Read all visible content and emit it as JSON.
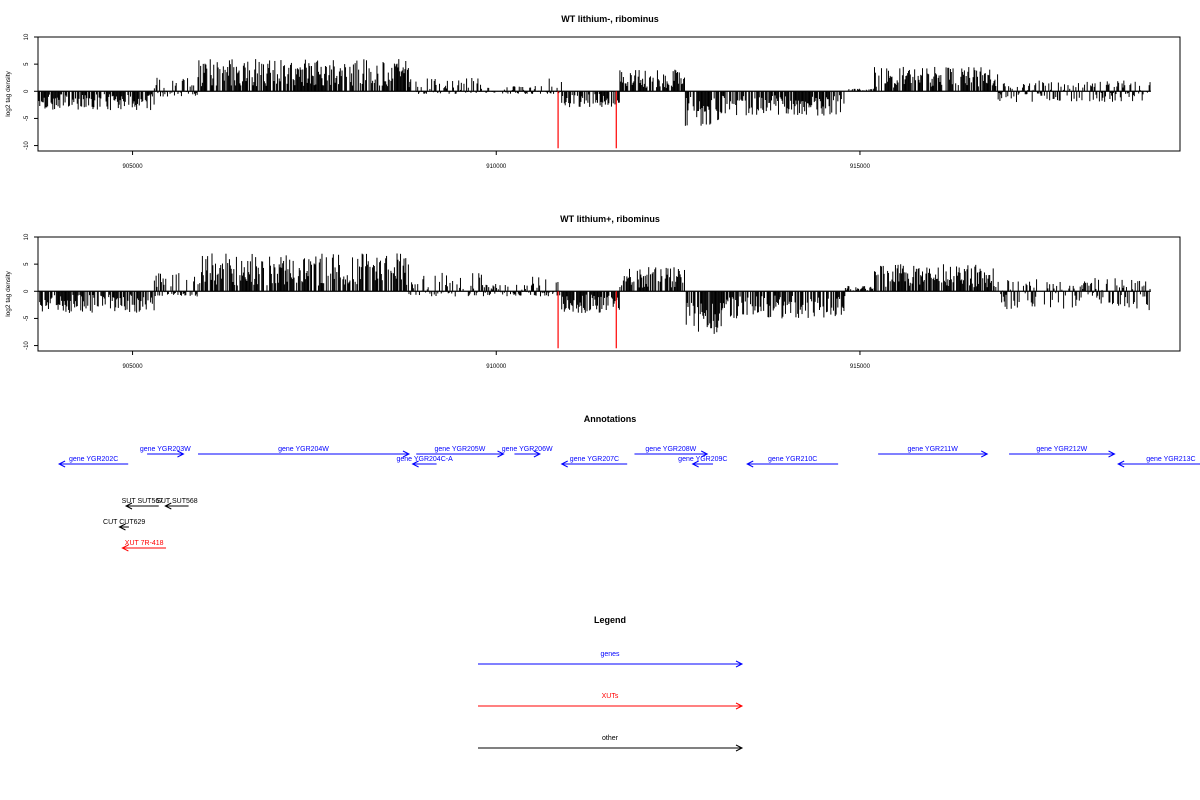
{
  "colors": {
    "gene": "#0000ff",
    "xut": "#ff0000",
    "other": "#000000",
    "signal": "#000000",
    "marker": "#ff0000"
  },
  "chart_data": [
    {
      "type": "bar",
      "title": "WT lithium-, ribominus",
      "ylabel": "log2 tag density",
      "xlim": [
        903700,
        919400
      ],
      "ylim": [
        -11,
        10
      ],
      "xticks": [
        905000,
        910000,
        915000
      ],
      "yticks": [
        10,
        5,
        0,
        -5,
        -10
      ],
      "grid": false,
      "profile": [
        {
          "x": [
            903700,
            905300
          ],
          "lo": -3.5,
          "hi": 0
        },
        {
          "x": [
            905300,
            905900
          ],
          "lo": -1,
          "hi": 2.5
        },
        {
          "x": [
            905900,
            908800
          ],
          "lo": 0,
          "hi": 6
        },
        {
          "x": [
            908800,
            909800
          ],
          "lo": -0.5,
          "hi": 2.5
        },
        {
          "x": [
            909800,
            910500
          ],
          "lo": -0.5,
          "hi": 1
        },
        {
          "x": [
            910500,
            910900
          ],
          "lo": -0.5,
          "hi": 3
        },
        {
          "x": [
            910900,
            911700
          ],
          "lo": -3,
          "hi": 0
        },
        {
          "x": [
            911700,
            912600
          ],
          "lo": 0,
          "hi": 4
        },
        {
          "x": [
            912600,
            913100
          ],
          "lo": -6.5,
          "hi": 0
        },
        {
          "x": [
            913100,
            914800
          ],
          "lo": -4.5,
          "hi": 0
        },
        {
          "x": [
            914800,
            915200
          ],
          "lo": 0,
          "hi": 0.5
        },
        {
          "x": [
            915200,
            916900
          ],
          "lo": 0,
          "hi": 4.5
        },
        {
          "x": [
            916900,
            919000
          ],
          "lo": -2,
          "hi": 2
        }
      ],
      "markers": [
        {
          "x": 910850,
          "y": -10.5
        },
        {
          "x": 911650,
          "y": -10.5
        }
      ]
    },
    {
      "type": "bar",
      "title": "WT lithium+, ribominus",
      "ylabel": "log2 tag density",
      "xlim": [
        903700,
        919400
      ],
      "ylim": [
        -11,
        10
      ],
      "xticks": [
        905000,
        910000,
        915000
      ],
      "yticks": [
        10,
        5,
        0,
        -5,
        -10
      ],
      "grid": false,
      "profile": [
        {
          "x": [
            903700,
            905300
          ],
          "lo": -4,
          "hi": 0
        },
        {
          "x": [
            905300,
            905900
          ],
          "lo": -1,
          "hi": 3.5
        },
        {
          "x": [
            905900,
            908800
          ],
          "lo": 0,
          "hi": 7
        },
        {
          "x": [
            908800,
            909800
          ],
          "lo": -1,
          "hi": 3.5
        },
        {
          "x": [
            909800,
            910500
          ],
          "lo": -1,
          "hi": 1.5
        },
        {
          "x": [
            910500,
            910900
          ],
          "lo": -1,
          "hi": 3
        },
        {
          "x": [
            910900,
            911700
          ],
          "lo": -4,
          "hi": 0
        },
        {
          "x": [
            911700,
            912600
          ],
          "lo": 0,
          "hi": 4.5
        },
        {
          "x": [
            912600,
            913100
          ],
          "lo": -8,
          "hi": 0
        },
        {
          "x": [
            913100,
            914800
          ],
          "lo": -5,
          "hi": 0
        },
        {
          "x": [
            914800,
            915200
          ],
          "lo": 0,
          "hi": 1
        },
        {
          "x": [
            915200,
            916900
          ],
          "lo": 0,
          "hi": 5
        },
        {
          "x": [
            916900,
            919000
          ],
          "lo": -3.5,
          "hi": 2.5
        }
      ],
      "markers": [
        {
          "x": 910850,
          "y": -10.5
        },
        {
          "x": 911650,
          "y": -10.5
        }
      ]
    }
  ],
  "annotations": {
    "title": "Annotations",
    "features": [
      {
        "label": "gene YGR202C",
        "start": 904940,
        "end": 903990,
        "row": 1,
        "kind": "gene"
      },
      {
        "label": "gene YGR203W",
        "start": 905200,
        "end": 905700,
        "row": 0,
        "kind": "gene"
      },
      {
        "label": "gene YGR204W",
        "start": 905900,
        "end": 908800,
        "row": 0,
        "kind": "gene"
      },
      {
        "label": "gene YGR204C-A",
        "start": 909180,
        "end": 908850,
        "row": 1,
        "kind": "gene"
      },
      {
        "label": "gene YGR205W",
        "start": 908900,
        "end": 910100,
        "row": 0,
        "kind": "gene"
      },
      {
        "label": "gene YGR206W",
        "start": 910250,
        "end": 910600,
        "row": 0,
        "kind": "gene"
      },
      {
        "label": "gene YGR207C",
        "start": 911800,
        "end": 910900,
        "row": 1,
        "kind": "gene"
      },
      {
        "label": "gene YGR208W",
        "start": 911900,
        "end": 912900,
        "row": 0,
        "kind": "gene"
      },
      {
        "label": "gene YGR209C",
        "start": 912980,
        "end": 912700,
        "row": 1,
        "kind": "gene"
      },
      {
        "label": "gene YGR210C",
        "start": 914700,
        "end": 913450,
        "row": 1,
        "kind": "gene"
      },
      {
        "label": "gene YGR211W",
        "start": 915250,
        "end": 916750,
        "row": 0,
        "kind": "gene"
      },
      {
        "label": "gene YGR212W",
        "start": 917050,
        "end": 918500,
        "row": 0,
        "kind": "gene"
      },
      {
        "label": "gene YGR213C",
        "start": 920000,
        "end": 918550,
        "row": 1,
        "kind": "gene"
      },
      {
        "label": "SUT SUT567",
        "start": 905360,
        "end": 904910,
        "row": 2,
        "kind": "other"
      },
      {
        "label": "SUT SUT568",
        "start": 905770,
        "end": 905450,
        "row": 2,
        "kind": "other"
      },
      {
        "label": "CUT CUT629",
        "start": 904950,
        "end": 904820,
        "row": 3,
        "kind": "other"
      },
      {
        "label": "XUT 7R-418",
        "start": 905460,
        "end": 904860,
        "row": 4,
        "kind": "xut"
      }
    ]
  },
  "legend": {
    "title": "Legend",
    "items": [
      {
        "label": "genes",
        "kind": "gene"
      },
      {
        "label": "XUTs",
        "kind": "xut"
      },
      {
        "label": "other",
        "kind": "other"
      }
    ]
  }
}
